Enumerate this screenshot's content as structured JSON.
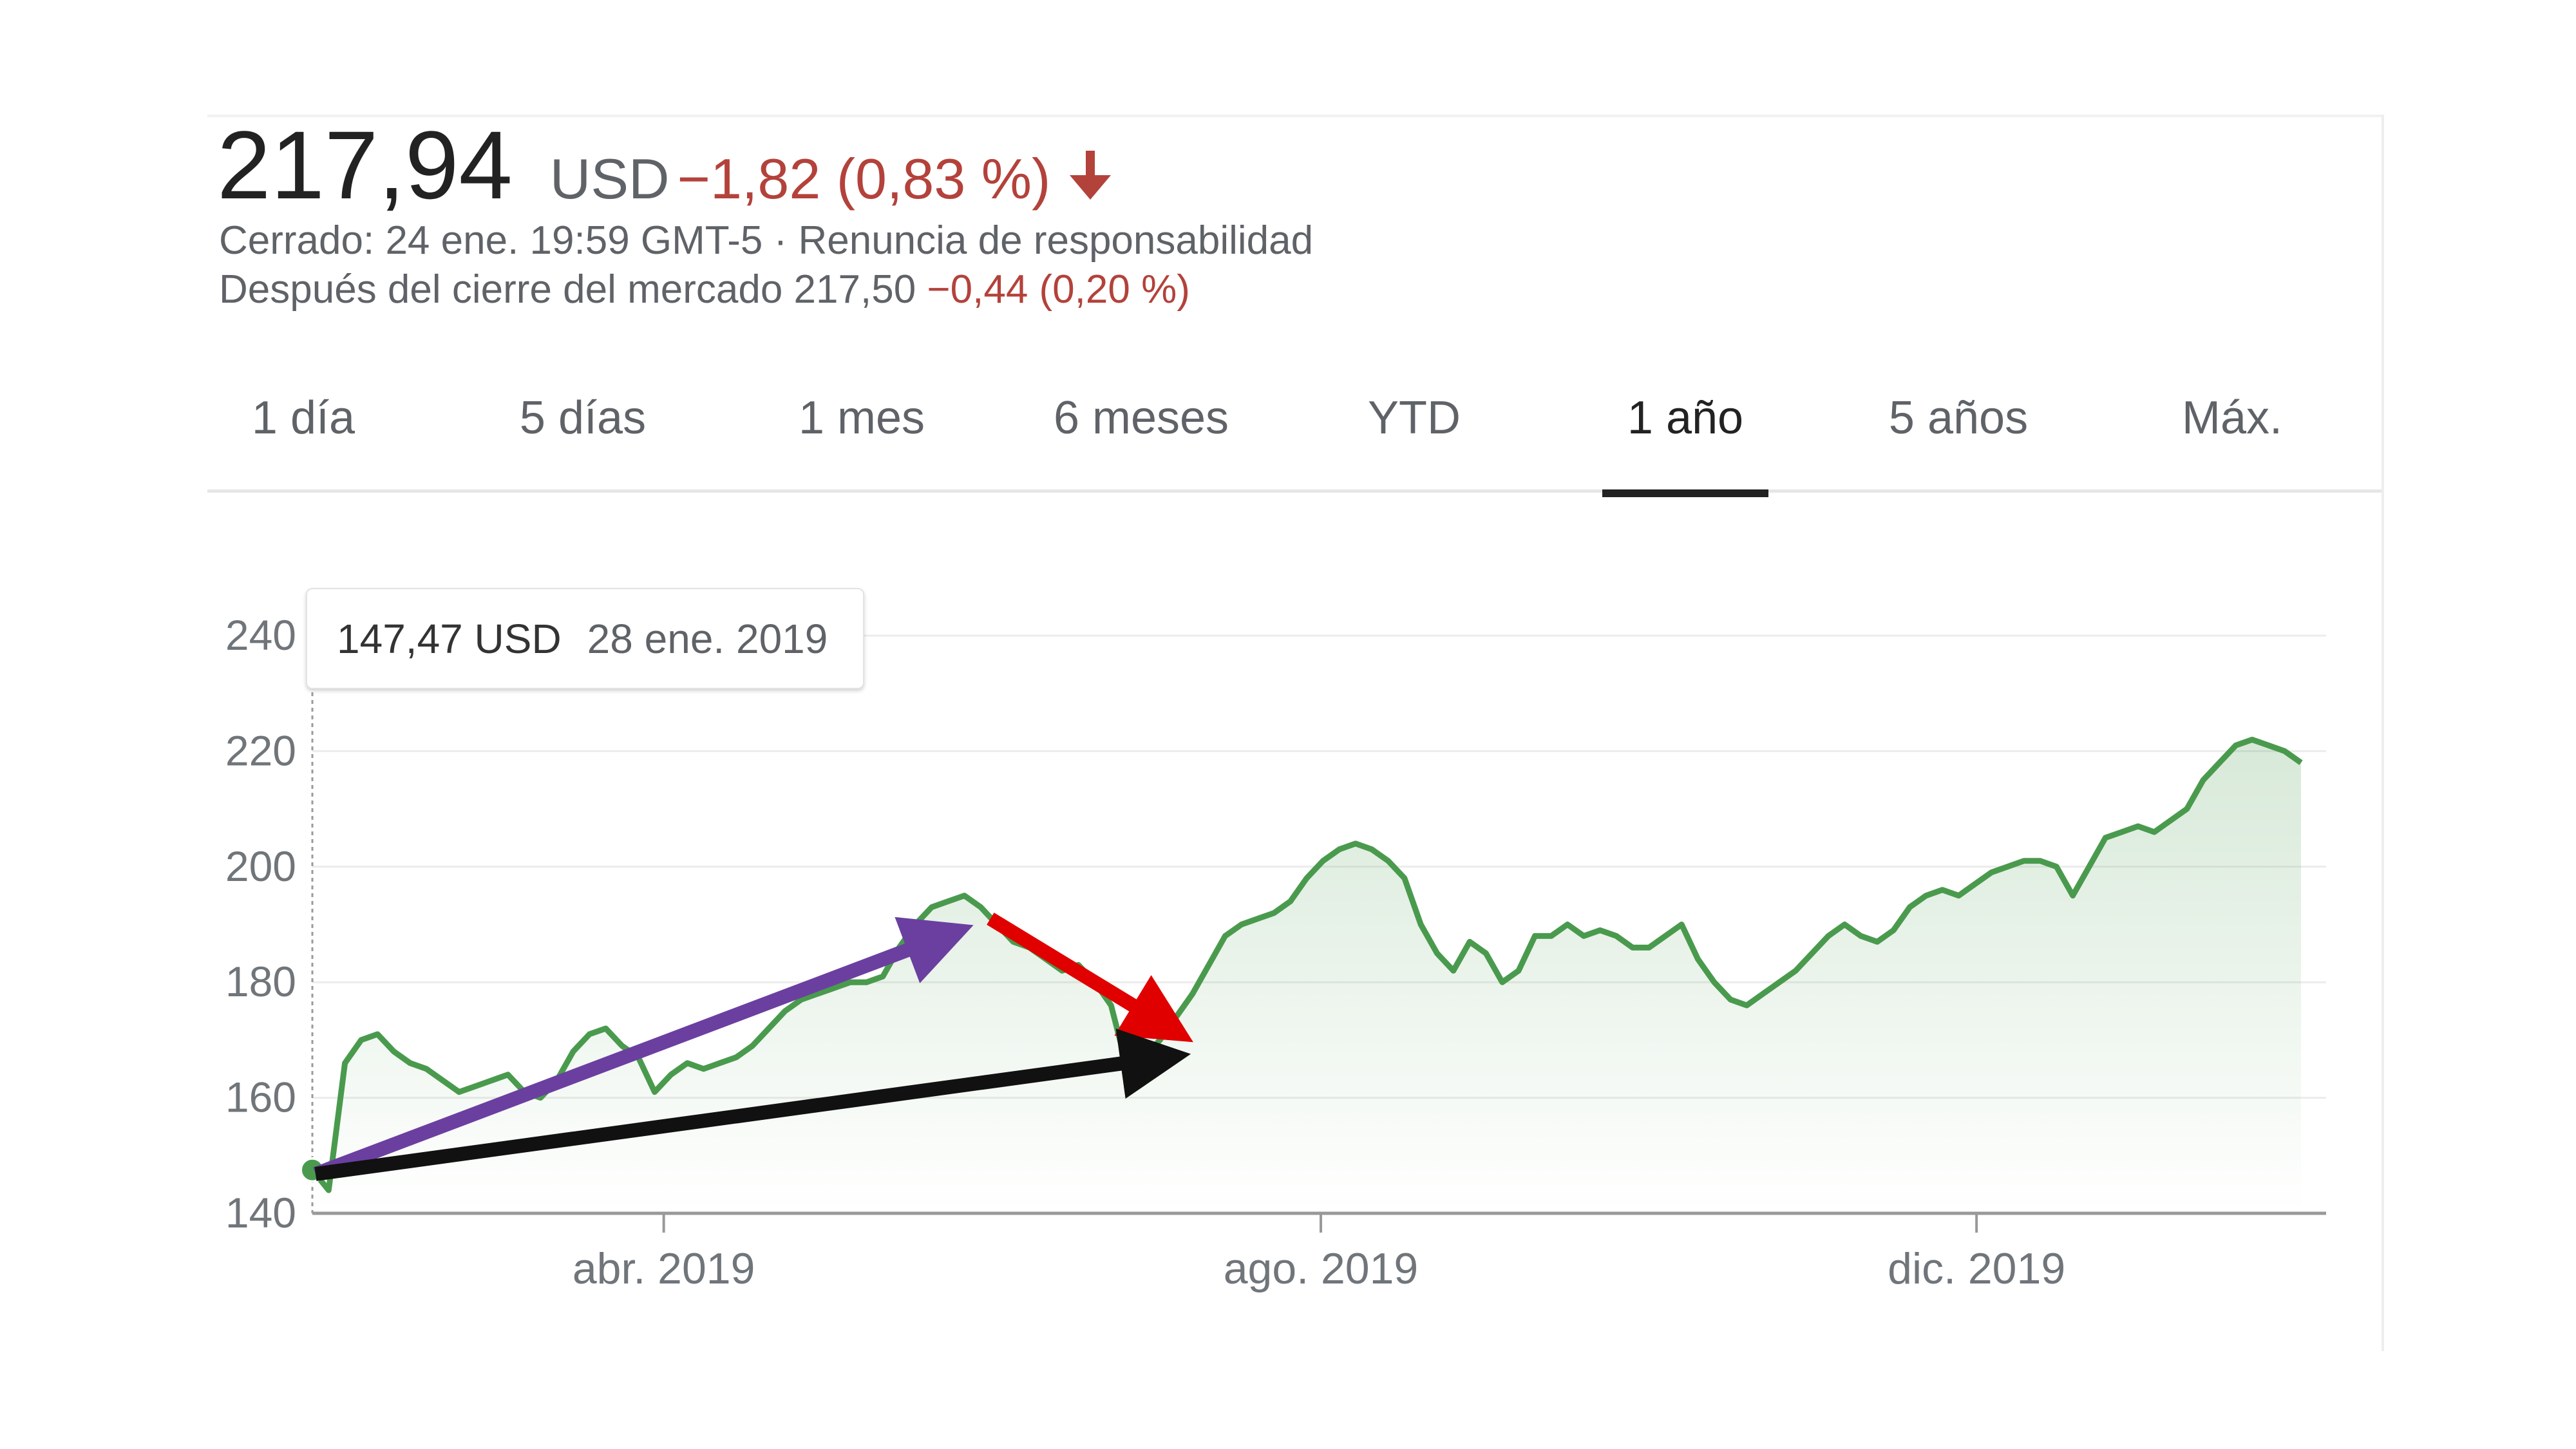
{
  "quote": {
    "price": "217,94",
    "currency": "USD",
    "change": "−1,82 (0,83 %)",
    "status_line": "Cerrado: 24 ene. 19:59 GMT-5 · Renuncia de responsabilidad",
    "after_hours_label": "Después del cierre del mercado 217,50",
    "after_hours_change": "−0,44 (0,20 %)"
  },
  "tabs": [
    {
      "label": "1 día"
    },
    {
      "label": "5 días"
    },
    {
      "label": "1 mes"
    },
    {
      "label": "6 meses"
    },
    {
      "label": "YTD"
    },
    {
      "label": "1 año",
      "active": true
    },
    {
      "label": "5 años"
    },
    {
      "label": "Máx."
    }
  ],
  "tooltip": {
    "value": "147,47 USD",
    "date": "28 ene. 2019"
  },
  "colors": {
    "line": "#4a9a4e",
    "negative": "#b3423b",
    "arrow_purple": "#6b3fa0",
    "arrow_red": "#e00000",
    "arrow_black": "#111111"
  },
  "chart_data": {
    "type": "line",
    "ylim": [
      140,
      240
    ],
    "yticks": [
      "140",
      "160",
      "180",
      "200",
      "220",
      "240"
    ],
    "xtick_labels": [
      "abr. 2019",
      "ago. 2019",
      "dic. 2019"
    ],
    "grid": true,
    "series": [
      {
        "x_range": [
          "28 ene. 2019",
          "24 ene. 2020"
        ],
        "values": [
          147.5,
          144,
          166,
          170,
          171,
          168,
          166,
          165,
          163,
          161,
          162,
          163,
          164,
          161,
          160,
          163,
          168,
          171,
          172,
          169,
          167,
          161,
          164,
          166,
          165,
          166,
          167,
          169,
          172,
          175,
          177,
          178,
          179,
          180,
          180,
          181,
          186,
          190,
          193,
          194,
          195,
          193,
          190,
          187,
          186,
          184,
          182,
          183,
          180,
          176,
          165,
          167,
          170,
          174,
          178,
          183,
          188,
          190,
          191,
          192,
          194,
          198,
          201,
          203,
          204,
          203,
          201,
          198,
          190,
          185,
          182,
          187,
          185,
          180,
          182,
          188,
          188,
          190,
          188,
          189,
          188,
          186,
          186,
          188,
          190,
          184,
          180,
          177,
          176,
          178,
          180,
          182,
          185,
          188,
          190,
          188,
          187,
          189,
          193,
          195,
          196,
          195,
          197,
          199,
          200,
          201,
          201,
          200,
          195,
          200,
          205,
          206,
          207,
          206,
          208,
          210,
          215,
          218,
          221,
          222,
          221,
          220,
          218
        ]
      }
    ],
    "annotations": [
      {
        "type": "arrow",
        "color": "purple",
        "from": [
          "28 ene. 2019",
          147
        ],
        "to": [
          "mayo 2019",
          191
        ]
      },
      {
        "type": "arrow",
        "color": "red",
        "from": [
          "mayo 2019",
          191
        ],
        "to": [
          "jun. 2019",
          168
        ]
      },
      {
        "type": "arrow",
        "color": "black",
        "from": [
          "28 ene. 2019",
          147
        ],
        "to": [
          "jun. 2019",
          168
        ]
      }
    ]
  }
}
